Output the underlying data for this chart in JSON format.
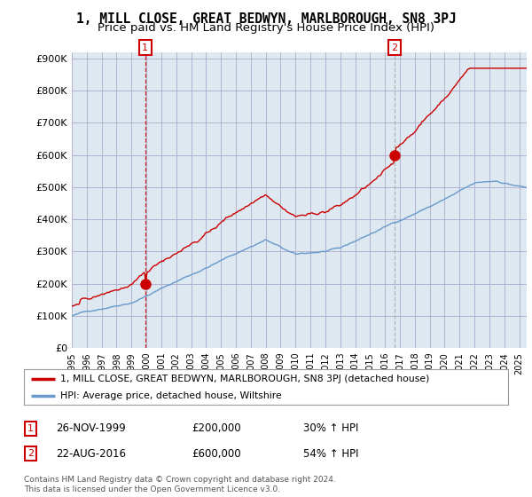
{
  "title": "1, MILL CLOSE, GREAT BEDWYN, MARLBOROUGH, SN8 3PJ",
  "subtitle": "Price paid vs. HM Land Registry's House Price Index (HPI)",
  "ylabel_ticks": [
    "£0",
    "£100K",
    "£200K",
    "£300K",
    "£400K",
    "£500K",
    "£600K",
    "£700K",
    "£800K",
    "£900K"
  ],
  "ytick_values": [
    0,
    100000,
    200000,
    300000,
    400000,
    500000,
    600000,
    700000,
    800000,
    900000
  ],
  "ylim": [
    0,
    920000
  ],
  "xlim_start": 1995.0,
  "xlim_end": 2025.5,
  "sale1_x": 1999.92,
  "sale1_y": 200000,
  "sale1_label": "1",
  "sale2_x": 2016.63,
  "sale2_y": 600000,
  "sale2_label": "2",
  "property_line_color": "#cc0000",
  "hpi_line_color": "#6699cc",
  "vline1_color": "#cc0000",
  "vline2_color": "#aaaaaa",
  "plot_bg_color": "#dde8f0",
  "legend_property_label": "1, MILL CLOSE, GREAT BEDWYN, MARLBOROUGH, SN8 3PJ (detached house)",
  "legend_hpi_label": "HPI: Average price, detached house, Wiltshire",
  "annotation1_date": "26-NOV-1999",
  "annotation1_price": "£200,000",
  "annotation1_hpi": "30% ↑ HPI",
  "annotation2_date": "22-AUG-2016",
  "annotation2_price": "£600,000",
  "annotation2_hpi": "54% ↑ HPI",
  "footer": "Contains HM Land Registry data © Crown copyright and database right 2024.\nThis data is licensed under the Open Government Licence v3.0.",
  "background_color": "#ffffff",
  "grid_color": "#aaaacc",
  "title_fontsize": 10.5,
  "subtitle_fontsize": 9.5
}
